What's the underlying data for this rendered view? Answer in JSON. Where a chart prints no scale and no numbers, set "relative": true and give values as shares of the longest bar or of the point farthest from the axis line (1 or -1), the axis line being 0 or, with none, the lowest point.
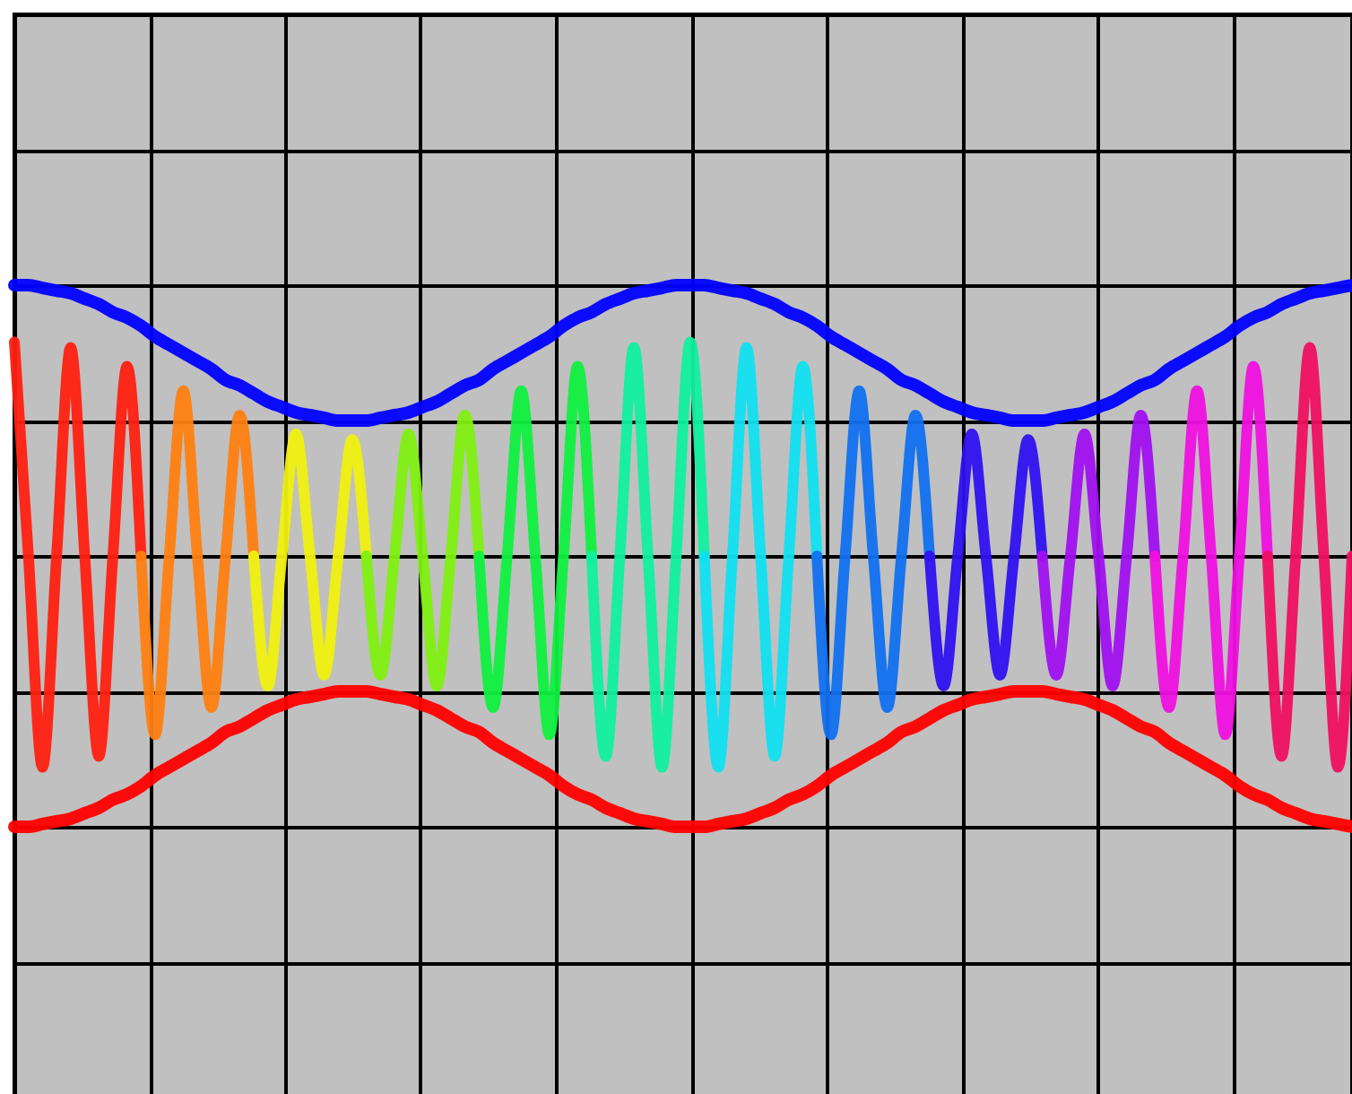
{
  "chart_data": {
    "type": "line",
    "relative": true,
    "grid": true,
    "categories": [
      null,
      null,
      null,
      null,
      null,
      null,
      null,
      null,
      null,
      null,
      null,
      null,
      null,
      null,
      null,
      null,
      null,
      null,
      null,
      null,
      null,
      null,
      null,
      null,
      null,
      null,
      null,
      null,
      null,
      null,
      null,
      null,
      null,
      null,
      null,
      null,
      null,
      null,
      null,
      null,
      null,
      null,
      null,
      null,
      null,
      null,
      null,
      null,
      null,
      null,
      null,
      null,
      null,
      null,
      null,
      null,
      null,
      null,
      null,
      null,
      null,
      null,
      null,
      null,
      null,
      null,
      null,
      null,
      null,
      null,
      null,
      null,
      null,
      null,
      null,
      null,
      null,
      null,
      null,
      null,
      null,
      null,
      null,
      null,
      null,
      null,
      null,
      null,
      null,
      null,
      null,
      null,
      null,
      null,
      null,
      null
    ],
    "series": [
      {
        "color": "#0000ff",
        "values": [
          1.0,
          1.0,
          0.99,
          0.98,
          0.97,
          0.95,
          0.93,
          0.9,
          0.88,
          0.85,
          0.81,
          0.78,
          0.75,
          0.72,
          0.69,
          0.65,
          0.63,
          0.6,
          0.57,
          0.55,
          0.53,
          0.52,
          0.51,
          0.5,
          0.5,
          0.5,
          0.51,
          0.52,
          0.53,
          0.55,
          0.57,
          0.6,
          0.63,
          0.65,
          0.69,
          0.72,
          0.75,
          0.78,
          0.81,
          0.85,
          0.88,
          0.9,
          0.93,
          0.95,
          0.97,
          0.98,
          0.99,
          1.0,
          1.0,
          1.0,
          0.99,
          0.98,
          0.97,
          0.95,
          0.93,
          0.9,
          0.88,
          0.85,
          0.81,
          0.78,
          0.75,
          0.72,
          0.69,
          0.65,
          0.63,
          0.6,
          0.57,
          0.55,
          0.53,
          0.52,
          0.51,
          0.5,
          0.5,
          0.5,
          0.51,
          0.52,
          0.53,
          0.55,
          0.57,
          0.6,
          0.63,
          0.65,
          0.69,
          0.72,
          0.75,
          0.78,
          0.81,
          0.85,
          0.88,
          0.9,
          0.93,
          0.95,
          0.97,
          0.98,
          0.99,
          1.0
        ]
      },
      {
        "color": "#ff0000",
        "values": [
          -1.0,
          -1.0,
          -0.99,
          -0.98,
          -0.97,
          -0.95,
          -0.93,
          -0.9,
          -0.88,
          -0.85,
          -0.81,
          -0.78,
          -0.75,
          -0.72,
          -0.69,
          -0.65,
          -0.63,
          -0.6,
          -0.57,
          -0.55,
          -0.53,
          -0.52,
          -0.51,
          -0.5,
          -0.5,
          -0.5,
          -0.51,
          -0.52,
          -0.53,
          -0.55,
          -0.57,
          -0.6,
          -0.63,
          -0.65,
          -0.69,
          -0.72,
          -0.75,
          -0.78,
          -0.81,
          -0.85,
          -0.88,
          -0.9,
          -0.93,
          -0.95,
          -0.97,
          -0.98,
          -0.99,
          -1.0,
          -1.0,
          -1.0,
          -0.99,
          -0.98,
          -0.97,
          -0.95,
          -0.93,
          -0.9,
          -0.88,
          -0.85,
          -0.81,
          -0.78,
          -0.75,
          -0.72,
          -0.69,
          -0.65,
          -0.63,
          -0.6,
          -0.57,
          -0.55,
          -0.53,
          -0.52,
          -0.51,
          -0.5,
          -0.5,
          -0.5,
          -0.51,
          -0.52,
          -0.53,
          -0.55,
          -0.57,
          -0.6,
          -0.63,
          -0.65,
          -0.69,
          -0.72,
          -0.75,
          -0.78,
          -0.81,
          -0.85,
          -0.88,
          -0.9,
          -0.93,
          -0.95,
          -0.97,
          -0.98,
          -0.99,
          -1.0
        ]
      },
      {
        "color": "#ff2010",
        "values": [
          0.79,
          0,
          -0.78,
          0,
          0.77,
          0,
          -0.74,
          0,
          0.7,
          0,
          null,
          null,
          null,
          null,
          null,
          null,
          null,
          null,
          null,
          null,
          null,
          null,
          null,
          null,
          null,
          null,
          null,
          null,
          null,
          null,
          null,
          null,
          null,
          null,
          null,
          null,
          null,
          null,
          null,
          null,
          null,
          null,
          null,
          null,
          null,
          null,
          null,
          null,
          null,
          null,
          null,
          null,
          null,
          null,
          null,
          null,
          null,
          null,
          null,
          null,
          null,
          null,
          null,
          null,
          null,
          null,
          null,
          null,
          null,
          null,
          null,
          null,
          null,
          null,
          null,
          null,
          null,
          null,
          null,
          null,
          null,
          null,
          null,
          null,
          null,
          null,
          null,
          null,
          null,
          null,
          null,
          null,
          null,
          null,
          null,
          null
        ]
      },
      {
        "color": "#ff8010",
        "values": [
          null,
          null,
          null,
          null,
          null,
          null,
          null,
          null,
          null,
          0,
          -0.66,
          0,
          0.61,
          0,
          -0.56,
          0,
          0.52,
          0,
          null,
          null,
          null,
          null,
          null,
          null,
          null,
          null,
          null,
          null,
          null,
          null,
          null,
          null,
          null,
          null,
          null,
          null,
          null,
          null,
          null,
          null,
          null,
          null,
          null,
          null,
          null,
          null,
          null,
          null,
          null,
          null,
          null,
          null,
          null,
          null,
          null,
          null,
          null,
          null,
          null,
          null,
          null,
          null,
          null,
          null,
          null,
          null,
          null,
          null,
          null,
          null,
          null,
          null,
          null,
          null,
          null,
          null,
          null,
          null,
          null,
          null,
          null,
          null,
          null,
          null,
          null,
          null,
          null,
          null,
          null,
          null,
          null,
          null,
          null,
          null,
          null,
          null
        ]
      },
      {
        "color": "#f0f010",
        "values": [
          null,
          null,
          null,
          null,
          null,
          null,
          null,
          null,
          null,
          null,
          null,
          null,
          null,
          null,
          null,
          null,
          null,
          0,
          -0.48,
          0,
          0.45,
          0,
          -0.44,
          0,
          0.43,
          0,
          null,
          null,
          null,
          null,
          null,
          null,
          null,
          null,
          null,
          null,
          null,
          null,
          null,
          null,
          null,
          null,
          null,
          null,
          null,
          null,
          null,
          null,
          null,
          null,
          null,
          null,
          null,
          null,
          null,
          null,
          null,
          null,
          null,
          null,
          null,
          null,
          null,
          null,
          null,
          null,
          null,
          null,
          null,
          null,
          null,
          null,
          null,
          null,
          null,
          null,
          null,
          null,
          null,
          null,
          null,
          null,
          null,
          null,
          null,
          null,
          null,
          null,
          null,
          null,
          null,
          null,
          null,
          null,
          null,
          null
        ]
      },
      {
        "color": "#80f010",
        "values": [
          null,
          null,
          null,
          null,
          null,
          null,
          null,
          null,
          null,
          null,
          null,
          null,
          null,
          null,
          null,
          null,
          null,
          null,
          null,
          null,
          null,
          null,
          null,
          null,
          null,
          0,
          -0.44,
          0,
          0.45,
          0,
          -0.48,
          0,
          0.52,
          0,
          null,
          null,
          null,
          null,
          null,
          null,
          null,
          null,
          null,
          null,
          null,
          null,
          null,
          null,
          null,
          null,
          null,
          null,
          null,
          null,
          null,
          null,
          null,
          null,
          null,
          null,
          null,
          null,
          null,
          null,
          null,
          null,
          null,
          null,
          null,
          null,
          null,
          null,
          null,
          null,
          null,
          null,
          null,
          null,
          null,
          null,
          null,
          null,
          null,
          null,
          null,
          null,
          null,
          null,
          null,
          null,
          null,
          null,
          null,
          null,
          null,
          null
        ]
      },
      {
        "color": "#10f040",
        "values": [
          null,
          null,
          null,
          null,
          null,
          null,
          null,
          null,
          null,
          null,
          null,
          null,
          null,
          null,
          null,
          null,
          null,
          null,
          null,
          null,
          null,
          null,
          null,
          null,
          null,
          null,
          null,
          null,
          null,
          null,
          null,
          null,
          null,
          0,
          -0.56,
          0,
          0.61,
          0,
          -0.66,
          0,
          0.7,
          0,
          null,
          null,
          null,
          null,
          null,
          null,
          null,
          null,
          null,
          null,
          null,
          null,
          null,
          null,
          null,
          null,
          null,
          null,
          null,
          null,
          null,
          null,
          null,
          null,
          null,
          null,
          null,
          null,
          null,
          null,
          null,
          null,
          null,
          null,
          null,
          null,
          null,
          null,
          null,
          null,
          null,
          null,
          null,
          null,
          null,
          null,
          null,
          null,
          null,
          null,
          null,
          null,
          null,
          null
        ]
      },
      {
        "color": "#10f0a0",
        "values": [
          null,
          null,
          null,
          null,
          null,
          null,
          null,
          null,
          null,
          null,
          null,
          null,
          null,
          null,
          null,
          null,
          null,
          null,
          null,
          null,
          null,
          null,
          null,
          null,
          null,
          null,
          null,
          null,
          null,
          null,
          null,
          null,
          null,
          null,
          null,
          null,
          null,
          null,
          null,
          null,
          null,
          0,
          -0.74,
          0,
          0.77,
          0,
          -0.78,
          0,
          0.79,
          0,
          null,
          null,
          null,
          null,
          null,
          null,
          null,
          null,
          null,
          null,
          null,
          null,
          null,
          null,
          null,
          null,
          null,
          null,
          null,
          null,
          null,
          null,
          null,
          null,
          null,
          null,
          null,
          null,
          null,
          null,
          null,
          null,
          null,
          null,
          null,
          null,
          null,
          null,
          null,
          null,
          null,
          null,
          null,
          null,
          null,
          null
        ]
      },
      {
        "color": "#10e0f0",
        "values": [
          null,
          null,
          null,
          null,
          null,
          null,
          null,
          null,
          null,
          null,
          null,
          null,
          null,
          null,
          null,
          null,
          null,
          null,
          null,
          null,
          null,
          null,
          null,
          null,
          null,
          null,
          null,
          null,
          null,
          null,
          null,
          null,
          null,
          null,
          null,
          null,
          null,
          null,
          null,
          null,
          null,
          null,
          null,
          null,
          null,
          null,
          null,
          null,
          null,
          0,
          -0.78,
          0,
          0.77,
          0,
          -0.74,
          0,
          0.7,
          0,
          null,
          null,
          null,
          null,
          null,
          null,
          null,
          null,
          null,
          null,
          null,
          null,
          null,
          null,
          null,
          null,
          null,
          null,
          null,
          null,
          null,
          null,
          null,
          null,
          null,
          null,
          null,
          null,
          null,
          null,
          null,
          null,
          null,
          null,
          null,
          null,
          null,
          null
        ]
      },
      {
        "color": "#1070f0",
        "values": [
          null,
          null,
          null,
          null,
          null,
          null,
          null,
          null,
          null,
          null,
          null,
          null,
          null,
          null,
          null,
          null,
          null,
          null,
          null,
          null,
          null,
          null,
          null,
          null,
          null,
          null,
          null,
          null,
          null,
          null,
          null,
          null,
          null,
          null,
          null,
          null,
          null,
          null,
          null,
          null,
          null,
          null,
          null,
          null,
          null,
          null,
          null,
          null,
          null,
          null,
          null,
          null,
          null,
          null,
          null,
          null,
          null,
          0,
          -0.66,
          0,
          0.61,
          0,
          -0.56,
          0,
          0.52,
          0,
          null,
          null,
          null,
          null,
          null,
          null,
          null,
          null,
          null,
          null,
          null,
          null,
          null,
          null,
          null,
          null,
          null,
          null,
          null,
          null,
          null,
          null,
          null,
          null,
          null,
          null,
          null,
          null,
          null,
          null
        ]
      },
      {
        "color": "#3010f0",
        "values": [
          null,
          null,
          null,
          null,
          null,
          null,
          null,
          null,
          null,
          null,
          null,
          null,
          null,
          null,
          null,
          null,
          null,
          null,
          null,
          null,
          null,
          null,
          null,
          null,
          null,
          null,
          null,
          null,
          null,
          null,
          null,
          null,
          null,
          null,
          null,
          null,
          null,
          null,
          null,
          null,
          null,
          null,
          null,
          null,
          null,
          null,
          null,
          null,
          null,
          null,
          null,
          null,
          null,
          null,
          null,
          null,
          null,
          null,
          null,
          null,
          null,
          null,
          null,
          null,
          null,
          0,
          -0.48,
          0,
          0.45,
          0,
          -0.44,
          0,
          0.43,
          0,
          null,
          null,
          null,
          null,
          null,
          null,
          null,
          null,
          null,
          null,
          null,
          null,
          null,
          null,
          null,
          null,
          null,
          null,
          null,
          null,
          null,
          null
        ]
      },
      {
        "color": "#a010f0",
        "values": [
          null,
          null,
          null,
          null,
          null,
          null,
          null,
          null,
          null,
          null,
          null,
          null,
          null,
          null,
          null,
          null,
          null,
          null,
          null,
          null,
          null,
          null,
          null,
          null,
          null,
          null,
          null,
          null,
          null,
          null,
          null,
          null,
          null,
          null,
          null,
          null,
          null,
          null,
          null,
          null,
          null,
          null,
          null,
          null,
          null,
          null,
          null,
          null,
          null,
          null,
          null,
          null,
          null,
          null,
          null,
          null,
          null,
          null,
          null,
          null,
          null,
          null,
          null,
          null,
          null,
          null,
          null,
          null,
          null,
          null,
          null,
          null,
          null,
          0,
          -0.44,
          0,
          0.45,
          0,
          -0.48,
          0,
          0.52,
          0,
          null,
          null,
          null,
          null,
          null,
          null,
          null,
          null,
          null,
          null,
          null,
          null,
          null,
          null
        ]
      },
      {
        "color": "#f010e0",
        "values": [
          null,
          null,
          null,
          null,
          null,
          null,
          null,
          null,
          null,
          null,
          null,
          null,
          null,
          null,
          null,
          null,
          null,
          null,
          null,
          null,
          null,
          null,
          null,
          null,
          null,
          null,
          null,
          null,
          null,
          null,
          null,
          null,
          null,
          null,
          null,
          null,
          null,
          null,
          null,
          null,
          null,
          null,
          null,
          null,
          null,
          null,
          null,
          null,
          null,
          null,
          null,
          null,
          null,
          null,
          null,
          null,
          null,
          null,
          null,
          null,
          null,
          null,
          null,
          null,
          null,
          null,
          null,
          null,
          null,
          null,
          null,
          null,
          null,
          null,
          null,
          null,
          null,
          null,
          null,
          null,
          null,
          0,
          -0.56,
          0,
          0.61,
          0,
          -0.66,
          0,
          0.7,
          0,
          null,
          null,
          null,
          null,
          null,
          null
        ]
      },
      {
        "color": "#f01060",
        "values": [
          null,
          null,
          null,
          null,
          null,
          null,
          null,
          null,
          null,
          null,
          null,
          null,
          null,
          null,
          null,
          null,
          null,
          null,
          null,
          null,
          null,
          null,
          null,
          null,
          null,
          null,
          null,
          null,
          null,
          null,
          null,
          null,
          null,
          null,
          null,
          null,
          null,
          null,
          null,
          null,
          null,
          null,
          null,
          null,
          null,
          null,
          null,
          null,
          null,
          null,
          null,
          null,
          null,
          null,
          null,
          null,
          null,
          null,
          null,
          null,
          null,
          null,
          null,
          null,
          null,
          null,
          null,
          null,
          null,
          null,
          null,
          null,
          null,
          null,
          null,
          null,
          null,
          null,
          null,
          null,
          null,
          null,
          null,
          null,
          null,
          null,
          null,
          null,
          null,
          0,
          -0.74,
          0,
          0.77,
          0,
          -0.78,
          0
        ]
      }
    ]
  }
}
